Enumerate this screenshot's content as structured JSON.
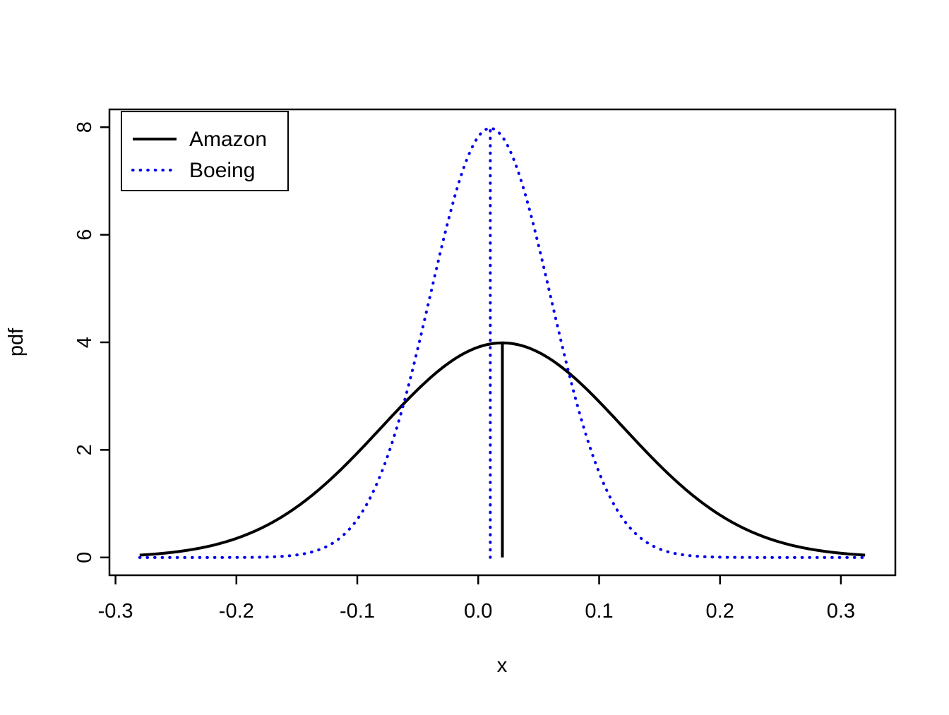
{
  "chart_data": {
    "type": "line",
    "title": "",
    "xlabel": "x",
    "ylabel": "pdf",
    "xlim": [
      -0.305,
      0.345
    ],
    "ylim": [
      -0.33,
      8.33
    ],
    "x_ticks": [
      -0.3,
      -0.2,
      -0.1,
      0.0,
      0.1,
      0.2,
      0.3
    ],
    "x_tick_labels": [
      "-0.3",
      "-0.2",
      "-0.1",
      "0.0",
      "0.1",
      "0.2",
      "0.3"
    ],
    "y_ticks": [
      0,
      2,
      4,
      6,
      8
    ],
    "y_tick_labels": [
      "0",
      "2",
      "4",
      "6",
      "8"
    ],
    "grid": false,
    "legend_position": "top-left",
    "x_range_plotted": [
      -0.28,
      0.32
    ],
    "series": [
      {
        "name": "Amazon",
        "distribution": "normal",
        "mean": 0.02,
        "sd": 0.1,
        "peak_pdf": 3.99,
        "color": "#000000",
        "line_style": "solid",
        "line_width": 4
      },
      {
        "name": "Boeing",
        "distribution": "normal",
        "mean": 0.01,
        "sd": 0.05,
        "peak_pdf": 7.98,
        "color": "#0000ee",
        "line_style": "dotted",
        "line_width": 4
      }
    ],
    "mean_lines": [
      {
        "series": "Amazon",
        "x": 0.02,
        "y_bottom": 0,
        "y_top": 3.99,
        "color": "#000000",
        "line_style": "solid",
        "line_width": 4
      },
      {
        "series": "Boeing",
        "x": 0.01,
        "y_bottom": 0,
        "y_top": 7.98,
        "color": "#0000ee",
        "line_style": "dotted",
        "line_width": 4
      }
    ],
    "legend": {
      "entries": [
        {
          "label": "Amazon",
          "color": "#000000",
          "line_style": "solid"
        },
        {
          "label": "Boeing",
          "color": "#0000ee",
          "line_style": "dotted"
        }
      ]
    }
  }
}
